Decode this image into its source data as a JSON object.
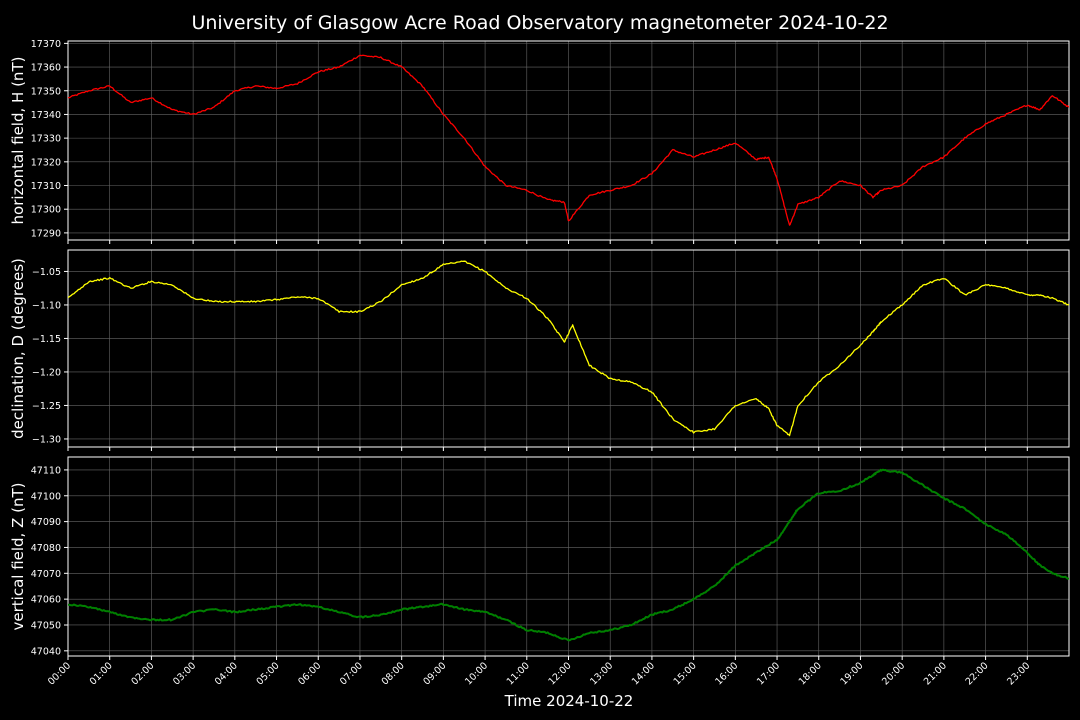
{
  "title": "University of Glasgow Acre Road Observatory magnetometer 2024-10-22",
  "chart_data": [
    {
      "type": "line",
      "ylabel": "horizontal field, H (nT)",
      "color": "#ff0000",
      "ylim": [
        17287,
        17371
      ],
      "yticks": [
        "17290",
        "17300",
        "17310",
        "17320",
        "17330",
        "17340",
        "17350",
        "17360",
        "17370"
      ],
      "x_hours": [
        0,
        0.5,
        1,
        1.5,
        2,
        2.5,
        3,
        3.5,
        4,
        4.5,
        5,
        5.5,
        6,
        6.5,
        7,
        7.5,
        8,
        8.5,
        9,
        9.5,
        10,
        10.5,
        11,
        11.5,
        11.9,
        12,
        12.5,
        13,
        13.5,
        14,
        14.5,
        15,
        15.5,
        16,
        16.5,
        16.8,
        17,
        17.3,
        17.5,
        18,
        18.5,
        19,
        19.3,
        19.5,
        20,
        20.5,
        21,
        21.5,
        22,
        22.5,
        23,
        23.3,
        23.6,
        24
      ],
      "y": [
        17347,
        17350,
        17352,
        17345,
        17347,
        17342,
        17340,
        17343,
        17350,
        17352,
        17351,
        17353,
        17358,
        17360,
        17365,
        17364,
        17360,
        17352,
        17340,
        17330,
        17318,
        17310,
        17308,
        17304,
        17303,
        17295,
        17306,
        17308,
        17310,
        17315,
        17325,
        17322,
        17325,
        17328,
        17321,
        17322,
        17313,
        17293,
        17302,
        17305,
        17312,
        17310,
        17305,
        17308,
        17310,
        17318,
        17322,
        17330,
        17336,
        17340,
        17344,
        17342,
        17348,
        17343
      ]
    },
    {
      "type": "line",
      "ylabel": "declination, D (degrees)",
      "color": "#ffff00",
      "ylim": [
        -1.312,
        -1.018
      ],
      "yticks": [
        "−1.30",
        "−1.25",
        "−1.20",
        "−1.15",
        "−1.10",
        "−1.05"
      ],
      "x_hours": [
        0,
        0.5,
        1,
        1.5,
        2,
        2.5,
        3,
        3.5,
        4,
        4.5,
        5,
        5.5,
        6,
        6.5,
        7,
        7.5,
        8,
        8.5,
        9,
        9.5,
        10,
        10.5,
        11,
        11.5,
        11.9,
        12.1,
        12.5,
        13,
        13.5,
        14,
        14.5,
        15,
        15.5,
        16,
        16.5,
        16.8,
        17,
        17.3,
        17.5,
        18,
        18.5,
        19,
        19.3,
        19.5,
        20,
        20.5,
        21,
        21.5,
        22,
        22.5,
        23,
        23.3,
        23.6,
        24
      ],
      "y": [
        -1.09,
        -1.065,
        -1.06,
        -1.075,
        -1.065,
        -1.07,
        -1.09,
        -1.095,
        -1.095,
        -1.095,
        -1.092,
        -1.088,
        -1.09,
        -1.11,
        -1.11,
        -1.095,
        -1.07,
        -1.06,
        -1.04,
        -1.035,
        -1.05,
        -1.075,
        -1.09,
        -1.12,
        -1.155,
        -1.13,
        -1.19,
        -1.21,
        -1.215,
        -1.23,
        -1.27,
        -1.29,
        -1.285,
        -1.25,
        -1.24,
        -1.255,
        -1.28,
        -1.295,
        -1.25,
        -1.215,
        -1.19,
        -1.16,
        -1.14,
        -1.125,
        -1.1,
        -1.07,
        -1.06,
        -1.085,
        -1.07,
        -1.075,
        -1.085,
        -1.085,
        -1.09,
        -1.1
      ]
    },
    {
      "type": "line",
      "ylabel": "vertical field, Z (nT)",
      "color": "#008000",
      "ylim": [
        47038,
        47115
      ],
      "yticks": [
        "47040",
        "47050",
        "47060",
        "47070",
        "47080",
        "47090",
        "47100",
        "47110"
      ],
      "x_hours": [
        0,
        0.5,
        1,
        1.5,
        2,
        2.5,
        3,
        3.5,
        4,
        4.5,
        5,
        5.5,
        6,
        6.5,
        7,
        7.5,
        8,
        8.5,
        9,
        9.5,
        10,
        10.5,
        11,
        11.5,
        12,
        12.5,
        13,
        13.5,
        14,
        14.5,
        15,
        15.5,
        16,
        16.5,
        17,
        17.3,
        17.5,
        18,
        18.5,
        19,
        19.3,
        19.5,
        20,
        20.5,
        21,
        21.5,
        22,
        22.5,
        23,
        23.3,
        23.6,
        24
      ],
      "y": [
        47058,
        47057,
        47055,
        47053,
        47052,
        47052,
        47055,
        47056,
        47055,
        47056,
        47057,
        47058,
        47057,
        47055,
        47053,
        47054,
        47056,
        47057,
        47058,
        47056,
        47055,
        47052,
        47048,
        47047,
        47044,
        47047,
        47048,
        47050,
        47054,
        47056,
        47060,
        47065,
        47073,
        47078,
        47083,
        47090,
        47095,
        47101,
        47102,
        47105,
        47108,
        47110,
        47109,
        47104,
        47099,
        47095,
        47089,
        47085,
        47078,
        47073,
        47070,
        47068
      ]
    }
  ],
  "xaxis": {
    "label": "Time 2024-10-22",
    "ticks": [
      "00:00",
      "01:00",
      "02:00",
      "03:00",
      "04:00",
      "05:00",
      "06:00",
      "07:00",
      "08:00",
      "09:00",
      "10:00",
      "11:00",
      "12:00",
      "13:00",
      "14:00",
      "15:00",
      "16:00",
      "17:00",
      "18:00",
      "19:00",
      "20:00",
      "21:00",
      "22:00",
      "23:00"
    ],
    "xlim": [
      0,
      24
    ]
  },
  "grid": true
}
